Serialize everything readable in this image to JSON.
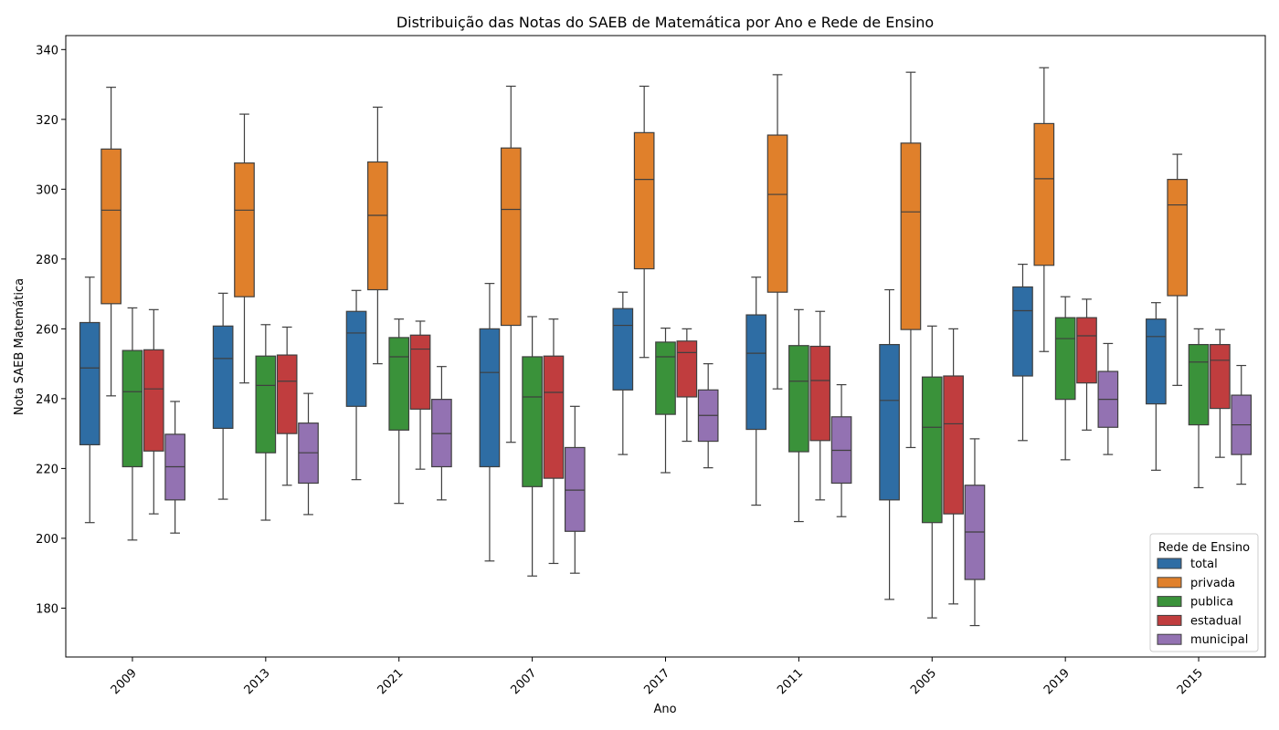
{
  "chart_data": {
    "type": "box",
    "title": "Distribuição das Notas do SAEB de Matemática por Ano e Rede de Ensino",
    "xlabel": "Ano",
    "ylabel": "Nota SAEB Matemática",
    "ylim": [
      166,
      344
    ],
    "yticks": [
      180,
      200,
      220,
      240,
      260,
      280,
      300,
      320,
      340
    ],
    "categories": [
      "2009",
      "2013",
      "2021",
      "2007",
      "2017",
      "2011",
      "2005",
      "2019",
      "2015"
    ],
    "legend": {
      "title": "Rede de Ensino",
      "placement": "lower-right"
    },
    "series": [
      {
        "name": "total",
        "color": "#2e6da4",
        "boxes": [
          {
            "wlo": 204.5,
            "q1": 226.8,
            "med": 248.8,
            "q3": 261.8,
            "whi": 274.8
          },
          {
            "wlo": 211.2,
            "q1": 231.5,
            "med": 251.5,
            "q3": 260.8,
            "whi": 270.2
          },
          {
            "wlo": 216.8,
            "q1": 237.8,
            "med": 258.8,
            "q3": 265.0,
            "whi": 271.0
          },
          {
            "wlo": 193.5,
            "q1": 220.5,
            "med": 247.5,
            "q3": 260.0,
            "whi": 273.0
          },
          {
            "wlo": 224.0,
            "q1": 242.5,
            "med": 261.0,
            "q3": 265.8,
            "whi": 270.5
          },
          {
            "wlo": 209.5,
            "q1": 231.2,
            "med": 253.0,
            "q3": 264.0,
            "whi": 274.8
          },
          {
            "wlo": 182.5,
            "q1": 211.0,
            "med": 239.5,
            "q3": 255.5,
            "whi": 271.2
          },
          {
            "wlo": 228.0,
            "q1": 246.5,
            "med": 265.2,
            "q3": 272.0,
            "whi": 278.5
          },
          {
            "wlo": 219.5,
            "q1": 238.5,
            "med": 257.8,
            "q3": 262.8,
            "whi": 267.5
          }
        ]
      },
      {
        "name": "privada",
        "color": "#e0802b",
        "boxes": [
          {
            "wlo": 240.8,
            "q1": 267.2,
            "med": 294.0,
            "q3": 311.5,
            "whi": 329.2
          },
          {
            "wlo": 244.5,
            "q1": 269.2,
            "med": 294.0,
            "q3": 307.5,
            "whi": 321.5
          },
          {
            "wlo": 250.0,
            "q1": 271.2,
            "med": 292.5,
            "q3": 307.8,
            "whi": 323.5
          },
          {
            "wlo": 227.5,
            "q1": 261.0,
            "med": 294.2,
            "q3": 311.8,
            "whi": 329.5
          },
          {
            "wlo": 251.8,
            "q1": 277.2,
            "med": 302.8,
            "q3": 316.2,
            "whi": 329.5
          },
          {
            "wlo": 242.8,
            "q1": 270.5,
            "med": 298.5,
            "q3": 315.5,
            "whi": 332.8
          },
          {
            "wlo": 226.0,
            "q1": 259.8,
            "med": 293.5,
            "q3": 313.2,
            "whi": 333.5
          },
          {
            "wlo": 253.5,
            "q1": 278.2,
            "med": 303.0,
            "q3": 318.8,
            "whi": 334.8
          },
          {
            "wlo": 243.8,
            "q1": 269.5,
            "med": 295.5,
            "q3": 302.8,
            "whi": 310.0
          }
        ]
      },
      {
        "name": "publica",
        "color": "#3a923a",
        "boxes": [
          {
            "wlo": 199.5,
            "q1": 220.5,
            "med": 242.0,
            "q3": 253.8,
            "whi": 266.0
          },
          {
            "wlo": 205.2,
            "q1": 224.5,
            "med": 243.8,
            "q3": 252.2,
            "whi": 261.2
          },
          {
            "wlo": 210.0,
            "q1": 231.0,
            "med": 252.0,
            "q3": 257.5,
            "whi": 262.8
          },
          {
            "wlo": 189.2,
            "q1": 214.8,
            "med": 240.5,
            "q3": 252.0,
            "whi": 263.5
          },
          {
            "wlo": 218.8,
            "q1": 235.5,
            "med": 252.0,
            "q3": 256.2,
            "whi": 260.2
          },
          {
            "wlo": 204.8,
            "q1": 224.8,
            "med": 245.0,
            "q3": 255.2,
            "whi": 265.5
          },
          {
            "wlo": 177.2,
            "q1": 204.5,
            "med": 231.8,
            "q3": 246.2,
            "whi": 260.8
          },
          {
            "wlo": 222.5,
            "q1": 239.8,
            "med": 257.2,
            "q3": 263.2,
            "whi": 269.2
          },
          {
            "wlo": 214.5,
            "q1": 232.5,
            "med": 250.5,
            "q3": 255.5,
            "whi": 260.0
          }
        ]
      },
      {
        "name": "estadual",
        "color": "#c03d3e",
        "boxes": [
          {
            "wlo": 207.0,
            "q1": 225.0,
            "med": 242.8,
            "q3": 254.0,
            "whi": 265.5
          },
          {
            "wlo": 215.2,
            "q1": 230.0,
            "med": 245.0,
            "q3": 252.5,
            "whi": 260.5
          },
          {
            "wlo": 219.8,
            "q1": 237.0,
            "med": 254.2,
            "q3": 258.2,
            "whi": 262.2
          },
          {
            "wlo": 192.8,
            "q1": 217.2,
            "med": 241.8,
            "q3": 252.2,
            "whi": 262.8
          },
          {
            "wlo": 227.8,
            "q1": 240.5,
            "med": 253.2,
            "q3": 256.5,
            "whi": 260.0
          },
          {
            "wlo": 211.0,
            "q1": 228.0,
            "med": 245.2,
            "q3": 255.0,
            "whi": 265.0
          },
          {
            "wlo": 181.2,
            "q1": 207.0,
            "med": 232.8,
            "q3": 246.5,
            "whi": 260.0
          },
          {
            "wlo": 231.0,
            "q1": 244.5,
            "med": 258.0,
            "q3": 263.2,
            "whi": 268.5
          },
          {
            "wlo": 223.2,
            "q1": 237.2,
            "med": 251.0,
            "q3": 255.5,
            "whi": 259.8
          }
        ]
      },
      {
        "name": "municipal",
        "color": "#9372b2",
        "boxes": [
          {
            "wlo": 201.5,
            "q1": 211.0,
            "med": 220.5,
            "q3": 229.8,
            "whi": 239.2
          },
          {
            "wlo": 206.8,
            "q1": 215.8,
            "med": 224.5,
            "q3": 233.0,
            "whi": 241.5
          },
          {
            "wlo": 211.0,
            "q1": 220.5,
            "med": 230.0,
            "q3": 239.8,
            "whi": 249.2
          },
          {
            "wlo": 190.0,
            "q1": 202.0,
            "med": 213.8,
            "q3": 226.0,
            "whi": 237.8
          },
          {
            "wlo": 220.2,
            "q1": 227.8,
            "med": 235.2,
            "q3": 242.5,
            "whi": 250.0
          },
          {
            "wlo": 206.2,
            "q1": 215.8,
            "med": 225.2,
            "q3": 234.8,
            "whi": 244.0
          },
          {
            "wlo": 175.0,
            "q1": 188.2,
            "med": 201.8,
            "q3": 215.2,
            "whi": 228.5
          },
          {
            "wlo": 224.0,
            "q1": 231.8,
            "med": 239.8,
            "q3": 247.8,
            "whi": 255.8
          },
          {
            "wlo": 215.5,
            "q1": 224.0,
            "med": 232.5,
            "q3": 241.0,
            "whi": 249.5
          }
        ]
      }
    ]
  }
}
